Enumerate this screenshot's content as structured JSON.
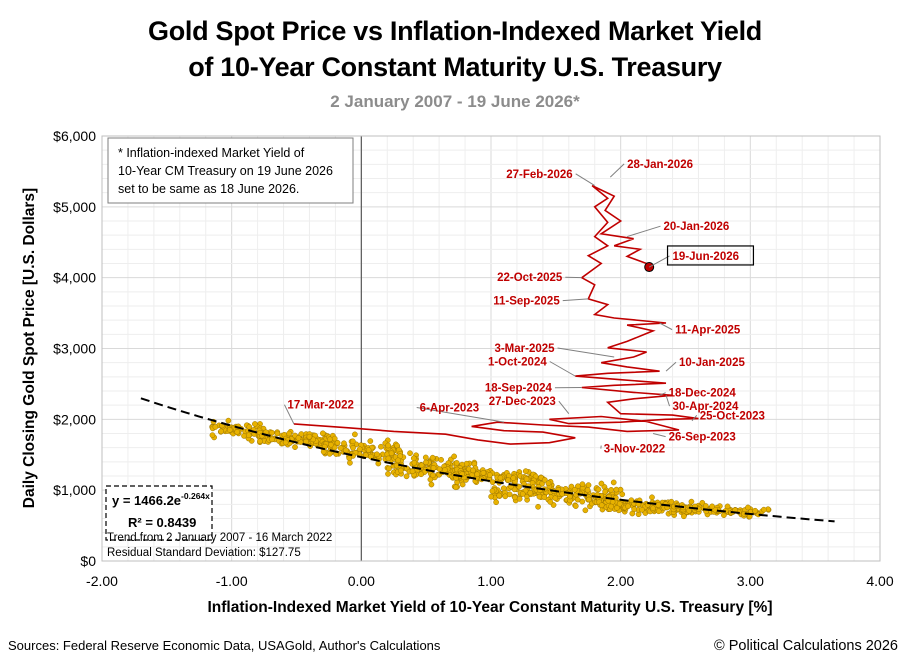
{
  "title_line1": "Gold Spot Price vs Inflation-Indexed Market Yield",
  "title_line2": "of 10-Year Constant Maturity U.S. Treasury",
  "subtitle": "2 January 2007 - 19 June 2026*",
  "footer": {
    "sources": "Sources: Federal Reserve Economic Data, USAGold, Author's Calculations",
    "copyright": "© Political Calculations 2026"
  },
  "colors": {
    "scatter": "#e8b200",
    "scatter_edge": "#9a7400",
    "path": "#c00000",
    "trend": "#000000",
    "grid": "#d9d9d9"
  },
  "chart_data": {
    "type": "scatter",
    "xlabel": "Inflation-Indexed Market Yield of 10-Year Constant Maturity U.S. Treasury [%]",
    "ylabel": "Daily Closing Gold Spot Price [U.S. Dollars]",
    "xlim": [
      -2.0,
      4.0
    ],
    "ylim": [
      0,
      6000
    ],
    "x_ticks": [
      "-2.00",
      "-1.00",
      "0.00",
      "1.00",
      "2.00",
      "3.00",
      "4.00"
    ],
    "y_ticks": [
      "$0",
      "$1,000",
      "$2,000",
      "$3,000",
      "$4,000",
      "$5,000",
      "$6,000"
    ],
    "grid": true,
    "note": [
      "* Inflation-indexed Market Yield of",
      "10-Year CM Treasury on 19 June 2026",
      "set to be same as 18 June 2026."
    ],
    "trend": {
      "equation_main": "y = 1466.2e",
      "equation_exp": "-0.264x",
      "r2": "R² = 0.8439",
      "a": 1466.2,
      "b": -0.264,
      "x_range": [
        -1.7,
        3.65
      ],
      "caption": "Trend from 2 January 2007 - 16 March 2022",
      "residual": "Residual Standard Deviation: $127.75"
    },
    "series": [
      {
        "name": "2 January 2007 - 16 March 2022",
        "clusters": [
          {
            "x0": -1.15,
            "x1": -0.75,
            "yc": 1800,
            "sd": 70,
            "n": 70
          },
          {
            "x0": -0.8,
            "x1": -0.2,
            "yc": 1760,
            "sd": 60,
            "n": 110
          },
          {
            "x0": -0.3,
            "x1": 0.3,
            "yc": 1640,
            "sd": 110,
            "n": 110
          },
          {
            "x0": 0.2,
            "x1": 0.9,
            "yc": 1330,
            "sd": 130,
            "n": 150
          },
          {
            "x0": 0.7,
            "x1": 1.4,
            "yc": 1260,
            "sd": 60,
            "n": 110
          },
          {
            "x0": 1.0,
            "x1": 2.0,
            "yc": 930,
            "sd": 110,
            "n": 200
          },
          {
            "x0": 1.8,
            "x1": 2.6,
            "yc": 720,
            "sd": 70,
            "n": 150
          },
          {
            "x0": 2.4,
            "x1": 3.15,
            "yc": 720,
            "sd": 45,
            "n": 90
          }
        ]
      },
      {
        "name": "17 March 2022 - 19 June 2026",
        "path": [
          [
            -0.52,
            1935
          ],
          [
            -0.1,
            1880
          ],
          [
            0.25,
            1830
          ],
          [
            0.65,
            1790
          ],
          [
            0.9,
            1710
          ],
          [
            1.15,
            1650
          ],
          [
            1.45,
            1670
          ],
          [
            1.65,
            1740
          ],
          [
            1.4,
            1820
          ],
          [
            1.1,
            1840
          ],
          [
            0.85,
            1900
          ],
          [
            1.05,
            1960
          ],
          [
            1.4,
            1920
          ],
          [
            1.75,
            1890
          ],
          [
            2.05,
            1830
          ],
          [
            2.45,
            1850
          ],
          [
            2.2,
            1970
          ],
          [
            1.85,
            2040
          ],
          [
            1.45,
            2000
          ],
          [
            1.6,
            1940
          ],
          [
            2.0,
            1960
          ],
          [
            2.35,
            2000
          ],
          [
            2.6,
            2010
          ],
          [
            2.4,
            2060
          ],
          [
            2.0,
            2080
          ],
          [
            1.9,
            2240
          ],
          [
            2.1,
            2290
          ],
          [
            2.4,
            2340
          ],
          [
            2.1,
            2380
          ],
          [
            1.7,
            2450
          ],
          [
            1.95,
            2480
          ],
          [
            2.35,
            2510
          ],
          [
            2.0,
            2560
          ],
          [
            1.65,
            2610
          ],
          [
            1.9,
            2650
          ],
          [
            2.3,
            2680
          ],
          [
            2.05,
            2740
          ],
          [
            1.85,
            2800
          ],
          [
            2.1,
            2880
          ],
          [
            2.2,
            2950
          ],
          [
            1.9,
            3010
          ],
          [
            2.05,
            3100
          ],
          [
            2.25,
            3250
          ],
          [
            2.05,
            3330
          ],
          [
            2.35,
            3360
          ],
          [
            1.95,
            3430
          ],
          [
            1.8,
            3480
          ],
          [
            1.9,
            3620
          ],
          [
            1.75,
            3700
          ],
          [
            1.8,
            3900
          ],
          [
            1.7,
            4000
          ],
          [
            1.85,
            4200
          ],
          [
            1.75,
            4310
          ],
          [
            1.9,
            4450
          ],
          [
            1.8,
            4580
          ],
          [
            1.9,
            4780
          ],
          [
            1.8,
            5000
          ],
          [
            1.9,
            5120
          ],
          [
            1.78,
            5300
          ],
          [
            1.95,
            5150
          ],
          [
            1.88,
            4950
          ],
          [
            2.0,
            4800
          ],
          [
            1.85,
            4620
          ],
          [
            2.1,
            4550
          ],
          [
            1.95,
            4450
          ],
          [
            2.15,
            4400
          ],
          [
            2.05,
            4300
          ],
          [
            2.2,
            4200
          ],
          [
            2.22,
            4150
          ]
        ]
      }
    ],
    "annotations": [
      {
        "text": "17-Mar-2022",
        "x": -0.52,
        "y": 1935,
        "tx": -0.57,
        "ty": 2150,
        "anchor": "start",
        "color": "#c00000"
      },
      {
        "text": "6-Apr-2023",
        "x": 1.1,
        "y": 1960,
        "tx": 0.45,
        "ty": 2110,
        "anchor": "start",
        "color": "#c00000"
      },
      {
        "text": "3-Nov-2022",
        "x": 1.85,
        "y": 1630,
        "tx": 1.87,
        "ty": 1530,
        "anchor": "start",
        "color": "#c00000"
      },
      {
        "text": "27-Feb-2026",
        "x": 1.8,
        "y": 5300,
        "tx": 1.63,
        "ty": 5410,
        "anchor": "end",
        "color": "#c00000"
      },
      {
        "text": "28-Jan-2026",
        "x": 1.92,
        "y": 5420,
        "tx": 2.05,
        "ty": 5550,
        "anchor": "start",
        "color": "#c00000"
      },
      {
        "text": "20-Jan-2026",
        "x": 2.05,
        "y": 4580,
        "tx": 2.33,
        "ty": 4670,
        "anchor": "start",
        "color": "#c00000"
      },
      {
        "text": "19-Jun-2026",
        "x": 2.22,
        "y": 4150,
        "tx": 2.4,
        "ty": 4250,
        "anchor": "start",
        "color": "#c00000",
        "boxed": true
      },
      {
        "text": "22-Oct-2025",
        "x": 1.7,
        "y": 4000,
        "tx": 1.55,
        "ty": 3950,
        "anchor": "end",
        "color": "#c00000"
      },
      {
        "text": "11-Sep-2025",
        "x": 1.75,
        "y": 3700,
        "tx": 1.53,
        "ty": 3620,
        "anchor": "end",
        "color": "#c00000"
      },
      {
        "text": "11-Apr-2025",
        "x": 2.3,
        "y": 3360,
        "tx": 2.42,
        "ty": 3210,
        "anchor": "start",
        "color": "#c00000"
      },
      {
        "text": "3-Mar-2025",
        "x": 1.95,
        "y": 2880,
        "tx": 1.49,
        "ty": 2950,
        "anchor": "end",
        "color": "#c00000"
      },
      {
        "text": "10-Jan-2025",
        "x": 2.35,
        "y": 2680,
        "tx": 2.45,
        "ty": 2750,
        "anchor": "start",
        "color": "#c00000"
      },
      {
        "text": "1-Oct-2024",
        "x": 1.65,
        "y": 2610,
        "tx": 1.43,
        "ty": 2760,
        "anchor": "end",
        "color": "#c00000"
      },
      {
        "text": "18-Sep-2024",
        "x": 1.7,
        "y": 2450,
        "tx": 1.47,
        "ty": 2390,
        "anchor": "end",
        "color": "#c00000"
      },
      {
        "text": "18-Dec-2024",
        "x": 2.3,
        "y": 2340,
        "tx": 2.37,
        "ty": 2320,
        "anchor": "start",
        "color": "#c00000"
      },
      {
        "text": "27-Dec-2023",
        "x": 1.6,
        "y": 2080,
        "tx": 1.5,
        "ty": 2200,
        "anchor": "end",
        "color": "#c00000"
      },
      {
        "text": "30-Apr-2024",
        "x": 2.35,
        "y": 2340,
        "tx": 2.4,
        "ty": 2130,
        "anchor": "start",
        "color": "#c00000"
      },
      {
        "text": "25-Oct-2023",
        "x": 2.55,
        "y": 1980,
        "tx": 2.61,
        "ty": 2000,
        "anchor": "start",
        "color": "#c00000"
      },
      {
        "text": "26-Sep-2023",
        "x": 2.25,
        "y": 1800,
        "tx": 2.37,
        "ty": 1700,
        "anchor": "start",
        "color": "#c00000"
      }
    ]
  }
}
